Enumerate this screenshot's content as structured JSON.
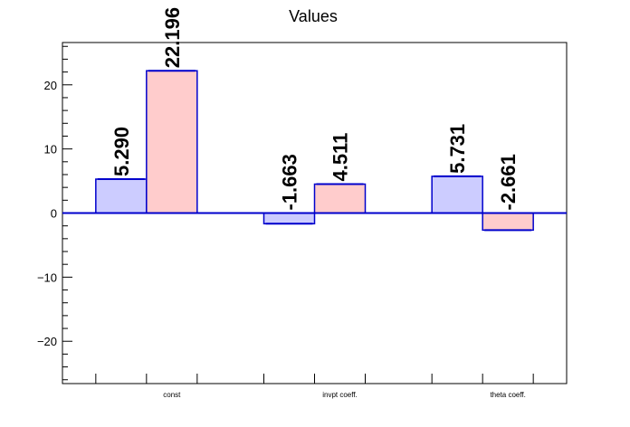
{
  "chart_data": {
    "type": "bar",
    "title": "Values",
    "xlabel": "",
    "ylabel": "",
    "categories": [
      "const",
      "invpt coeff.",
      "theta coeff."
    ],
    "series": [
      {
        "values": [
          5.29,
          -1.663,
          5.731
        ],
        "labels": [
          "5.290",
          "-1.663",
          "5.731"
        ],
        "fill": "#ccccff",
        "stroke": "#0000cc"
      },
      {
        "values": [
          22.196,
          4.511,
          -2.661
        ],
        "labels": [
          "22.196",
          "4.511",
          "-2.661"
        ],
        "fill": "#ffcccc",
        "stroke": "#0000cc"
      }
    ],
    "ylim": [
      -26.6,
      26.6
    ],
    "yticks": [
      -20,
      -10,
      0,
      10,
      20
    ],
    "ytick_labels": [
      "−20",
      "−10",
      "0",
      "10",
      "20"
    ],
    "grid": false,
    "colors": {
      "axis": "#000000",
      "zero_line": "#0000cc"
    }
  }
}
